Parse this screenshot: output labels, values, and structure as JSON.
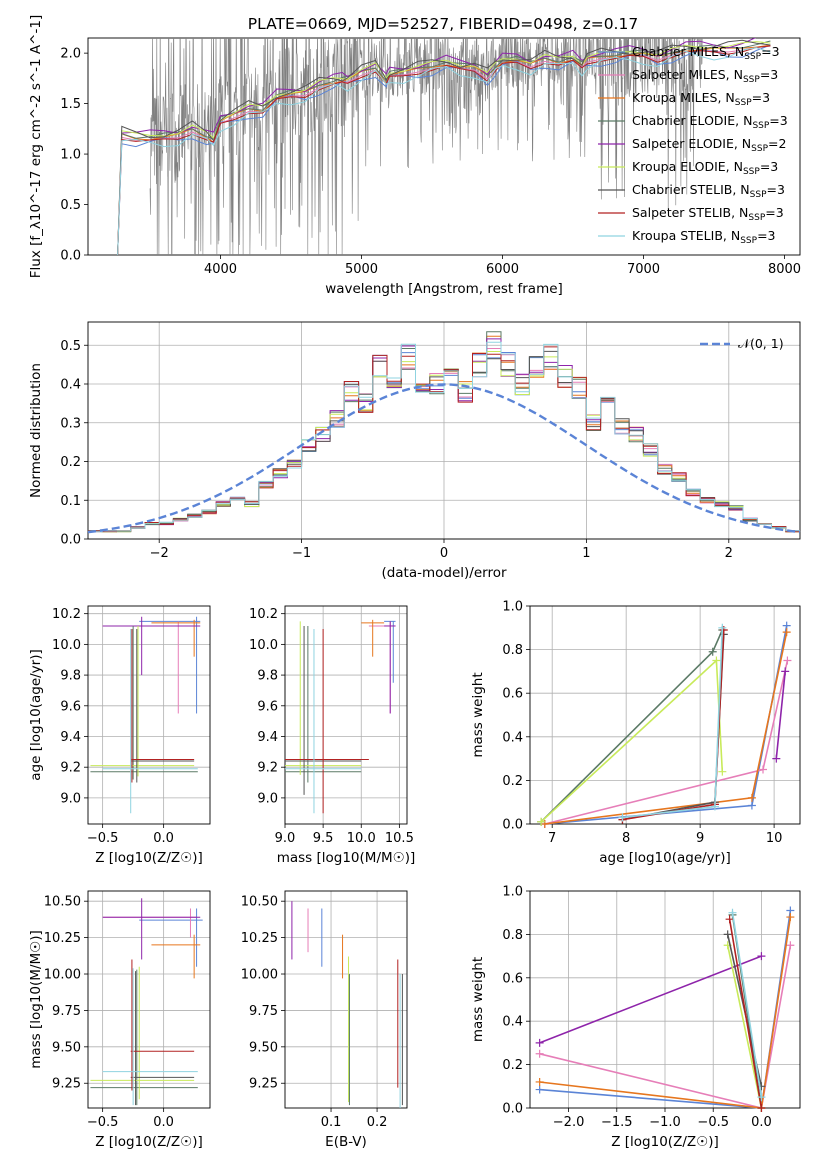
{
  "title": "PLATE=0669, MJD=52527, FIBERID=0498, z=0.17",
  "colors": {
    "Chabrier MILES": "#5b84d6",
    "Salpeter MILES": "#e67eb8",
    "Kroupa MILES": "#e6761e",
    "Chabrier ELODIE": "#5b7a66",
    "Salpeter ELODIE": "#8e24aa",
    "Kroupa ELODIE": "#c8ea5a",
    "Chabrier STELIB": "#555555",
    "Salpeter STELIB": "#b22222",
    "Kroupa STELIB": "#8fd3e0",
    "normal": "#5b84d6",
    "data": "#808080"
  },
  "chart_data": [
    {
      "type": "line",
      "panel": "spectrum",
      "xlabel": "wavelength [Angstrom, rest frame]",
      "ylabel": "Flux [f_λ10^-17 erg cm^-2 s^-1 A^-1]",
      "xticks": [
        4000,
        5000,
        6000,
        7000,
        8000
      ],
      "yticks": [
        "0.0",
        "0.5",
        "1.0",
        "1.5",
        "2.0"
      ],
      "xlim": [
        3060,
        8110
      ],
      "ylim": [
        0,
        2.15
      ],
      "legend": [
        {
          "name": "Chabrier MILES",
          "nssp": "3"
        },
        {
          "name": "Salpeter MILES",
          "nssp": "3"
        },
        {
          "name": "Kroupa MILES",
          "nssp": "3"
        },
        {
          "name": "Chabrier ELODIE",
          "nssp": "3"
        },
        {
          "name": "Salpeter ELODIE",
          "nssp": "2"
        },
        {
          "name": "Kroupa ELODIE",
          "nssp": "3"
        },
        {
          "name": "Chabrier STELIB",
          "nssp": "3"
        },
        {
          "name": "Salpeter STELIB",
          "nssp": "3"
        },
        {
          "name": "Kroupa STELIB",
          "nssp": "3"
        }
      ],
      "legend_position": "right",
      "model_x": [
        3270,
        3300,
        3400,
        3500,
        3600,
        3700,
        3800,
        3900,
        3950,
        4000,
        4100,
        4200,
        4300,
        4400,
        4500,
        4600,
        4700,
        4800,
        4862,
        4900,
        5000,
        5100,
        5175,
        5200,
        5300,
        5400,
        5500,
        5600,
        5700,
        5800,
        5893,
        5950,
        6000,
        6100,
        6200,
        6300,
        6400,
        6500,
        6563,
        6600,
        6700,
        6800,
        6900,
        7000,
        7100,
        7200,
        7300,
        7400,
        7500,
        7600,
        7700,
        7800,
        7900
      ],
      "model_y": [
        0.0,
        1.2,
        1.15,
        1.14,
        1.17,
        1.2,
        1.25,
        1.16,
        1.12,
        1.33,
        1.4,
        1.45,
        1.42,
        1.55,
        1.6,
        1.62,
        1.68,
        1.7,
        1.72,
        1.74,
        1.82,
        1.85,
        1.7,
        1.78,
        1.82,
        1.85,
        1.86,
        1.88,
        1.86,
        1.87,
        1.78,
        1.85,
        1.9,
        1.93,
        1.9,
        1.95,
        1.9,
        1.93,
        1.88,
        1.95,
        1.97,
        1.96,
        1.98,
        2.0,
        1.97,
        2.0,
        2.02,
        2.03,
        2.05,
        2.05,
        2.05,
        2.06,
        2.08
      ]
    },
    {
      "type": "bar",
      "panel": "residual-histogram",
      "xlabel": "(data-model)/error",
      "ylabel": "Normed distribution",
      "xticks": [
        "−2",
        "−1",
        "0",
        "1",
        "2"
      ],
      "yticks": [
        "0.0",
        "0.1",
        "0.2",
        "0.3",
        "0.4",
        "0.5"
      ],
      "xlim": [
        -2.5,
        2.5
      ],
      "ylim": [
        0,
        0.56
      ],
      "legend": [
        "𝒩(0, 1)"
      ],
      "legend_position": "top-right",
      "bin_edges_start": -2.5,
      "bin_width": 0.1,
      "values": [
        0.02,
        0.02,
        0.02,
        0.03,
        0.04,
        0.04,
        0.05,
        0.06,
        0.07,
        0.09,
        0.11,
        0.09,
        0.14,
        0.17,
        0.19,
        0.24,
        0.27,
        0.31,
        0.38,
        0.35,
        0.45,
        0.42,
        0.47,
        0.39,
        0.4,
        0.41,
        0.38,
        0.45,
        0.5,
        0.45,
        0.4,
        0.44,
        0.47,
        0.42,
        0.39,
        0.3,
        0.35,
        0.29,
        0.27,
        0.23,
        0.18,
        0.16,
        0.12,
        0.1,
        0.09,
        0.08,
        0.05,
        0.04,
        0.03,
        0.02
      ]
    },
    {
      "type": "scatter",
      "panel": "age-vs-Z",
      "xlabel": "Z [log10(Z/Z☉)]",
      "ylabel": "age  [log10(age/yr)]",
      "xticks": [
        "−0.5",
        "0.0"
      ],
      "yticks": [
        "9.0",
        "9.2",
        "9.4",
        "9.6",
        "9.8",
        "10.0",
        "10.2"
      ],
      "xlim": [
        -0.62,
        0.38
      ],
      "ylim": [
        8.83,
        10.25
      ]
    },
    {
      "type": "scatter",
      "panel": "age-vs-mass",
      "xlabel": "mass [log10(M/M☉)]",
      "ylabel": "",
      "xticks": [
        "9.0",
        "9.5",
        "10.0",
        "10.5"
      ],
      "yticks": [
        "9.0",
        "9.2",
        "9.4",
        "9.6",
        "9.8",
        "10.0",
        "10.2"
      ],
      "xlim": [
        9.0,
        10.6
      ],
      "ylim": [
        8.83,
        10.25
      ]
    },
    {
      "type": "line",
      "panel": "weight-vs-age",
      "xlabel": "age  [log10(age/yr)]",
      "ylabel": "mass weight",
      "xticks": [
        "7",
        "8",
        "9",
        "10"
      ],
      "yticks": [
        "0.0",
        "0.2",
        "0.4",
        "0.6",
        "0.8",
        "1.0"
      ],
      "xlim": [
        6.7,
        10.35
      ],
      "ylim": [
        0,
        1.0
      ],
      "series": [
        {
          "name": "Chabrier MILES",
          "x": [
            6.9,
            9.7,
            10.17
          ],
          "y": [
            0.0,
            0.085,
            0.91
          ]
        },
        {
          "name": "Salpeter MILES",
          "x": [
            6.9,
            9.85,
            10.18
          ],
          "y": [
            0.0,
            0.25,
            0.75
          ]
        },
        {
          "name": "Kroupa MILES",
          "x": [
            6.9,
            9.7,
            10.17
          ],
          "y": [
            0.0,
            0.12,
            0.88
          ]
        },
        {
          "name": "Chabrier ELODIE",
          "x": [
            6.85,
            9.17,
            9.3
          ],
          "y": [
            0.01,
            0.79,
            0.89
          ]
        },
        {
          "name": "Salpeter ELODIE",
          "x": [
            10.03,
            10.15
          ],
          "y": [
            0.3,
            0.7
          ]
        },
        {
          "name": "Kroupa ELODIE",
          "x": [
            6.85,
            9.22,
            9.3
          ],
          "y": [
            0.01,
            0.75,
            0.24
          ]
        },
        {
          "name": "Chabrier STELIB",
          "x": [
            7.95,
            9.2,
            9.32
          ],
          "y": [
            0.02,
            0.1,
            0.87
          ]
        },
        {
          "name": "Salpeter STELIB",
          "x": [
            7.95,
            9.2,
            9.32
          ],
          "y": [
            0.02,
            0.09,
            0.89
          ]
        },
        {
          "name": "Kroupa STELIB",
          "x": [
            7.95,
            9.2,
            9.3
          ],
          "y": [
            0.03,
            0.08,
            0.9
          ]
        }
      ]
    },
    {
      "type": "scatter",
      "panel": "mass-vs-Z",
      "xlabel": "Z [log10(Z/Z☉)]",
      "ylabel": "mass [log10(M/M☉)]",
      "xticks": [
        "−0.5",
        "0.0"
      ],
      "yticks": [
        "9.25",
        "9.50",
        "9.75",
        "10.00",
        "10.25",
        "10.50"
      ],
      "xlim": [
        -0.62,
        0.38
      ],
      "ylim": [
        9.08,
        10.57
      ]
    },
    {
      "type": "scatter",
      "panel": "mass-vs-EBV",
      "xlabel": "E(B-V)",
      "ylabel": "",
      "xticks": [
        "0.1",
        "0.2"
      ],
      "yticks": [
        "9.25",
        "9.50",
        "9.75",
        "10.00",
        "10.25",
        "10.50"
      ],
      "xlim": [
        0.0,
        0.265
      ],
      "ylim": [
        9.08,
        10.57
      ]
    },
    {
      "type": "line",
      "panel": "weight-vs-Z",
      "xlabel": "Z [log10(Z/Z☉)]",
      "ylabel": "mass weight",
      "xticks": [
        "−2.0",
        "−1.5",
        "−1.0",
        "−0.5",
        "0.0"
      ],
      "yticks": [
        "0.0",
        "0.2",
        "0.4",
        "0.6",
        "0.8",
        "1.0"
      ],
      "xlim": [
        -2.4,
        0.4
      ],
      "ylim": [
        0,
        1.0
      ],
      "series": [
        {
          "name": "Chabrier MILES",
          "x": [
            -2.3,
            0.0,
            0.3
          ],
          "y": [
            0.085,
            0.0,
            0.91
          ]
        },
        {
          "name": "Salpeter MILES",
          "x": [
            -2.3,
            0.0,
            0.3
          ],
          "y": [
            0.25,
            0.0,
            0.75
          ]
        },
        {
          "name": "Kroupa MILES",
          "x": [
            -2.3,
            0.0,
            0.3
          ],
          "y": [
            0.12,
            0.0,
            0.88
          ]
        },
        {
          "name": "Salpeter ELODIE",
          "x": [
            -2.3,
            0.0
          ],
          "y": [
            0.3,
            0.7
          ]
        },
        {
          "name": "Chabrier ELODIE",
          "x": [
            -0.3,
            0.0
          ],
          "y": [
            0.89,
            0.0
          ]
        },
        {
          "name": "Kroupa ELODIE",
          "x": [
            -0.35,
            0.0
          ],
          "y": [
            0.75,
            0.0
          ]
        },
        {
          "name": "Chabrier STELIB",
          "x": [
            -0.35,
            0.0
          ],
          "y": [
            0.8,
            0.1
          ]
        },
        {
          "name": "Salpeter STELIB",
          "x": [
            -0.33,
            0.0
          ],
          "y": [
            0.87,
            0.0
          ]
        },
        {
          "name": "Kroupa STELIB",
          "x": [
            -0.3,
            0.0
          ],
          "y": [
            0.9,
            0.05
          ]
        }
      ]
    }
  ]
}
